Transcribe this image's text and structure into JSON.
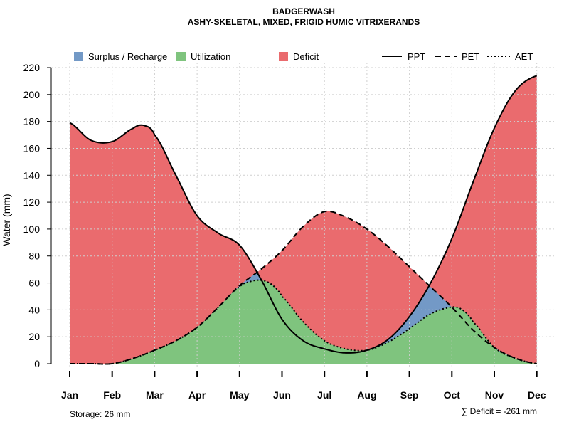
{
  "chart_data": {
    "type": "area",
    "title": "BADGERWASH",
    "subtitle": "ASHY-SKELETAL, MIXED, FRIGID HUMIC VITRIXERANDS",
    "xlabel": "",
    "ylabel": "Water (mm)",
    "ylim": [
      0,
      220
    ],
    "yticks": [
      "0",
      "20",
      "40",
      "60",
      "80",
      "100",
      "120",
      "140",
      "160",
      "180",
      "200",
      "220"
    ],
    "categories": [
      "Jan",
      "Feb",
      "Mar",
      "Apr",
      "May",
      "Jun",
      "Jul",
      "Aug",
      "Sep",
      "Oct",
      "Nov",
      "Dec"
    ],
    "grid": true,
    "series": [
      {
        "name": "PPT",
        "style": "solid",
        "x": [
          1,
          1.5,
          2,
          2.5,
          2.75,
          3,
          3.5,
          4,
          4.5,
          5,
          5.5,
          6,
          6.5,
          7,
          7.5,
          8,
          8.5,
          9,
          9.5,
          10,
          10.5,
          11,
          11.5,
          12
        ],
        "values": [
          179,
          166,
          165,
          175,
          177,
          170,
          140,
          110,
          97,
          88,
          63,
          33,
          17,
          11,
          8,
          10,
          18,
          35,
          60,
          93,
          135,
          175,
          203,
          214
        ]
      },
      {
        "name": "PET",
        "style": "dashed",
        "x": [
          1,
          1.5,
          2,
          2.5,
          3,
          3.5,
          4,
          4.5,
          5,
          5.5,
          6,
          6.5,
          7,
          7.5,
          8,
          8.5,
          9,
          9.5,
          10,
          10.5,
          11,
          11.5,
          12
        ],
        "values": [
          0,
          0,
          0,
          4,
          10,
          17,
          27,
          42,
          58,
          70,
          84,
          102,
          113,
          109,
          100,
          87,
          72,
          57,
          42,
          25,
          12,
          4,
          0
        ]
      },
      {
        "name": "AET",
        "style": "dotted",
        "x": [
          1,
          1.5,
          2,
          2.5,
          3,
          3.5,
          4,
          4.5,
          5,
          5.25,
          5.5,
          5.75,
          6,
          6.5,
          7,
          7.5,
          8,
          8.5,
          9,
          9.5,
          10,
          10.25,
          10.5,
          11,
          11.5,
          12
        ],
        "values": [
          0,
          0,
          0,
          4,
          10,
          17,
          27,
          42,
          57,
          61,
          62,
          59,
          50,
          31,
          17,
          11,
          10,
          16,
          26,
          37,
          42,
          40,
          31,
          12,
          4,
          0
        ]
      }
    ],
    "areas": [
      {
        "name": "Surplus / Recharge",
        "color": "#7399c6"
      },
      {
        "name": "Utilization",
        "color": "#7fc47e"
      },
      {
        "name": "Deficit",
        "color": "#ea6b6e"
      }
    ],
    "lines_legend": [
      {
        "name": "PPT",
        "style": "solid"
      },
      {
        "name": "PET",
        "style": "dashed"
      },
      {
        "name": "AET",
        "style": "dotted"
      }
    ],
    "legend_position": "top",
    "annotations": {
      "storage": "Storage: 26 mm",
      "deficit": "∑ Deficit = -261 mm"
    }
  }
}
